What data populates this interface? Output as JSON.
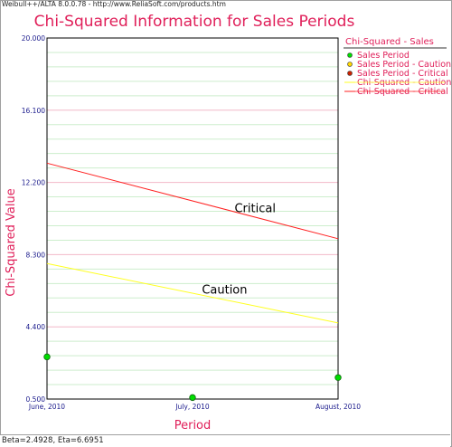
{
  "app": {
    "banner": "Weibull++/ALTA 8.0.0.78 - http://www.ReliaSoft.com/products.htm"
  },
  "footer": {
    "params": "Beta=2.4928, Eta=6.6951"
  },
  "colors": {
    "title": "#e0205a",
    "tick": "#1a1a8c",
    "critical_line": "#ff2020",
    "caution_line": "#ffff20",
    "sales_point": "#00dd00",
    "caution_point": "#ffd700",
    "critical_point": "#cc2200",
    "major_grid": "#f2b8c8",
    "minor_grid": "#cdeecd"
  },
  "chart_data": {
    "type": "scatter",
    "title": "Chi-Squared Information for Sales Periods",
    "xlabel": "Period",
    "ylabel": "Chi-Squared Value",
    "categories": [
      "June, 2010",
      "July, 2010",
      "August, 2010"
    ],
    "ylim": [
      0.5,
      20.0
    ],
    "yticks": [
      "0.500",
      "4.400",
      "8.300",
      "12.200",
      "16.100",
      "20.000"
    ],
    "grid": true,
    "legend": {
      "title": "Chi-Squared - Sales",
      "placement": "right",
      "entries": [
        {
          "label": "Sales Period",
          "kind": "point",
          "color": "#00dd00"
        },
        {
          "label": "Sales Period - Caution",
          "kind": "point",
          "color": "#ffd700"
        },
        {
          "label": "Sales Period - Critical",
          "kind": "point",
          "color": "#cc2200"
        },
        {
          "label": "Chi-Squared - Caution",
          "kind": "line",
          "color": "#ffff20"
        },
        {
          "label": "Chi-Squared - Critical",
          "kind": "line",
          "color": "#ff2020"
        }
      ]
    },
    "series": [
      {
        "name": "Sales Period",
        "kind": "points",
        "x": [
          0,
          1,
          2
        ],
        "y": [
          2.78,
          0.58,
          1.66
        ]
      },
      {
        "name": "Chi-Squared - Critical",
        "kind": "line",
        "x": [
          0,
          2
        ],
        "y": [
          13.24,
          9.16
        ]
      },
      {
        "name": "Chi-Squared - Caution",
        "kind": "line",
        "x": [
          0,
          2
        ],
        "y": [
          7.82,
          4.61
        ]
      }
    ],
    "annotations": [
      {
        "text": "Critical",
        "x": 1.43,
        "y": 10.6
      },
      {
        "text": "Caution",
        "x": 1.22,
        "y": 6.2
      }
    ]
  }
}
